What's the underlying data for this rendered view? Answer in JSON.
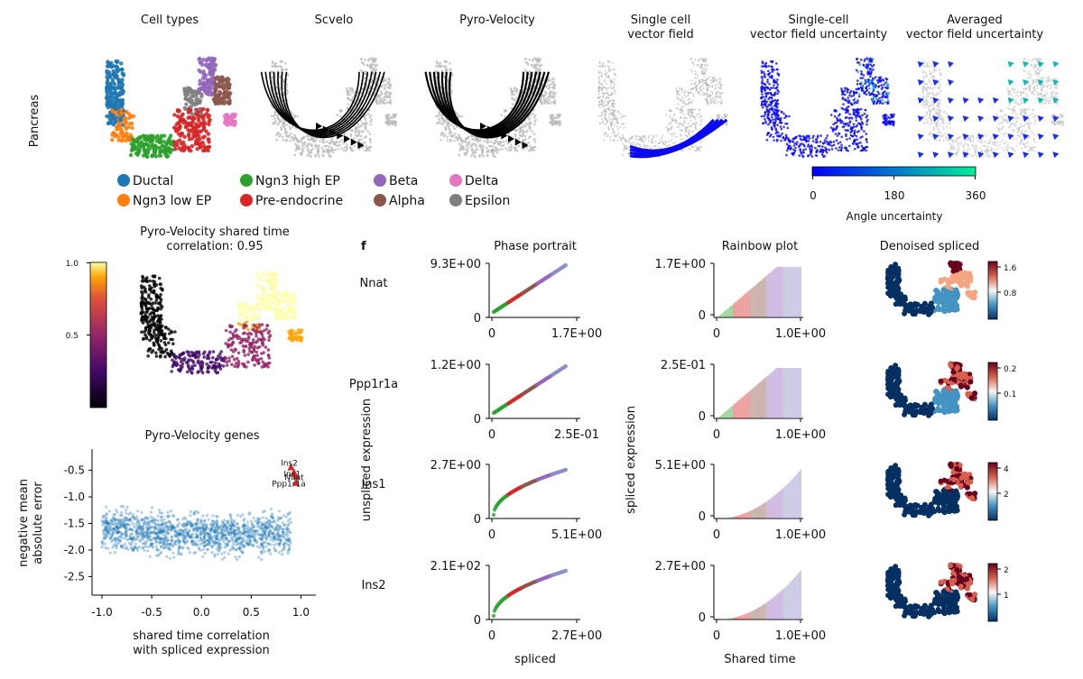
{
  "top_row": {
    "row_label": "Pancreas",
    "panels": [
      {
        "title_lines": [
          "Cell types"
        ]
      },
      {
        "title_lines": [
          "Scvelo"
        ]
      },
      {
        "title_lines": [
          "Pyro-Velocity"
        ]
      },
      {
        "title_lines": [
          "Single cell",
          "vector field"
        ]
      },
      {
        "title_lines": [
          "Single-cell",
          "vector field uncertainty"
        ]
      },
      {
        "title_lines": [
          "Averaged",
          "vector field uncertainty"
        ]
      }
    ],
    "legend": [
      {
        "label": "Ductal",
        "color": "#1f77b4"
      },
      {
        "label": "Ngn3 low EP",
        "color": "#ff7f0e"
      },
      {
        "label": "Ngn3 high EP",
        "color": "#2ca02c"
      },
      {
        "label": "Pre-endocrine",
        "color": "#d62728"
      },
      {
        "label": "Beta",
        "color": "#9467bd"
      },
      {
        "label": "Alpha",
        "color": "#8c564b"
      },
      {
        "label": "Delta",
        "color": "#e377c2"
      },
      {
        "label": "Epsilon",
        "color": "#7f7f7f"
      }
    ],
    "uncertainty_colorbar": {
      "ticks": [
        "0",
        "180",
        "360"
      ],
      "label": "Angle uncertainty",
      "colors": [
        "#0000ff",
        "#00ee99"
      ]
    }
  },
  "shared_time_panel": {
    "title_lines": [
      "Pyro-Velocity shared time",
      "correlation: 0.95"
    ],
    "colorbar_ticks": [
      "1.0",
      "0.5"
    ]
  },
  "chart_data": {
    "type": "scatter",
    "title": "Pyro-Velocity genes",
    "xlabel_lines": [
      "shared time correlation",
      "with spliced expression"
    ],
    "ylabel_lines": [
      "negative mean",
      "absolute error"
    ],
    "xlim": [
      -1.1,
      1.15
    ],
    "ylim": [
      -2.85,
      -0.1
    ],
    "xticks": [
      "-1.0",
      "-0.5",
      "0.0",
      "0.5",
      "1.0"
    ],
    "yticks": [
      "-0.5",
      "-1.0",
      "-1.5",
      "-2.0",
      "-2.5"
    ],
    "point_color": "#1f77b4",
    "highlight_color": "#d62728",
    "highlighted_genes": [
      {
        "name": "Ins2",
        "x": 0.9,
        "y": -0.45
      },
      {
        "name": "Ins1",
        "x": 0.93,
        "y": -0.55
      },
      {
        "name": "Nnat",
        "x": 0.95,
        "y": -0.62
      },
      {
        "name": "Ppp1r1a",
        "x": 0.95,
        "y": -0.74
      }
    ]
  },
  "panel_f": {
    "letter": "f",
    "column_titles": [
      "Phase portrait",
      "Rainbow plot",
      "Denoised spliced"
    ],
    "phase_ylabel": "unspliced expression",
    "rainbow_ylabel": "spliced expression",
    "phase_xlabel": "spliced",
    "rainbow_xlabel": "Shared time",
    "rows": [
      {
        "gene": "Nnat",
        "phase": {
          "ymax": "9.3E+00",
          "ymin": "0",
          "xmin": "0",
          "xmax": "1.7E+00"
        },
        "rainbow": {
          "ymax": "1.7E+00",
          "ymin": "0",
          "xmin": "0",
          "xmax": "1.0E+00"
        },
        "colorbar": [
          "1.6",
          "0.8"
        ]
      },
      {
        "gene": "Ppp1r1a",
        "phase": {
          "ymax": "1.2E+00",
          "ymin": "0",
          "xmin": "0",
          "xmax": "2.5E-01"
        },
        "rainbow": {
          "ymax": "2.5E-01",
          "ymin": "0",
          "xmin": "0",
          "xmax": "1.0E+00"
        },
        "colorbar": [
          "0.2",
          "0.1"
        ]
      },
      {
        "gene": "Ins1",
        "phase": {
          "ymax": "2.7E+00",
          "ymin": "0",
          "xmin": "0",
          "xmax": "5.1E+00"
        },
        "rainbow": {
          "ymax": "5.1E+00",
          "ymin": "0",
          "xmin": "0",
          "xmax": "1.0E+00"
        },
        "colorbar": [
          "4",
          "2"
        ]
      },
      {
        "gene": "Ins2",
        "phase": {
          "ymax": "2.1E+02",
          "ymin": "0",
          "xmin": "0",
          "xmax": "2.7E+00"
        },
        "rainbow": {
          "ymax": "2.7E+00",
          "ymin": "0",
          "xmin": "0",
          "xmax": "1.0E+00"
        },
        "colorbar": [
          "2",
          "1"
        ]
      }
    ]
  }
}
